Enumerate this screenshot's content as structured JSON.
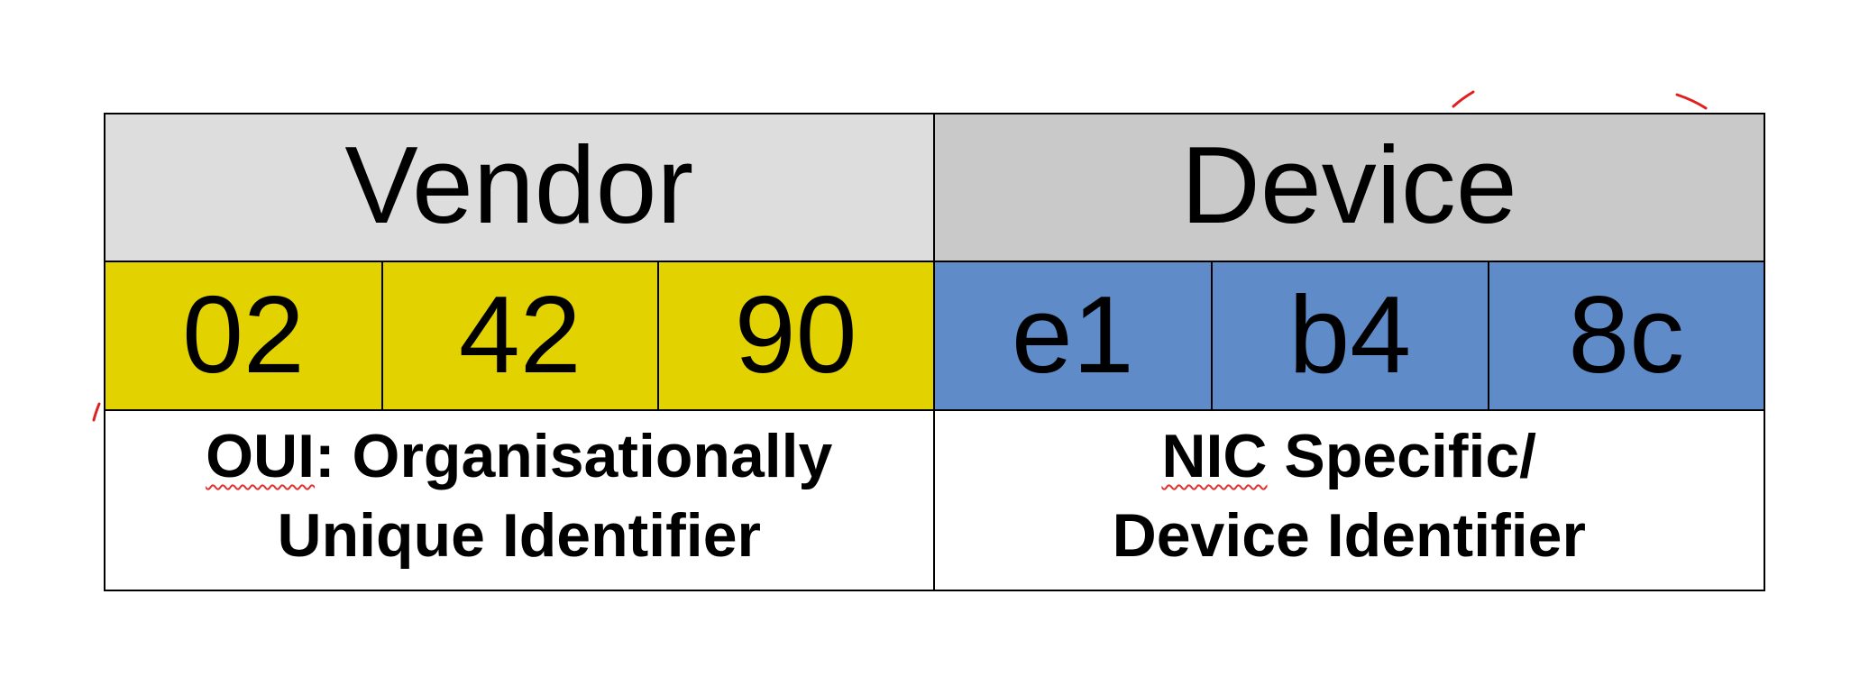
{
  "mac_layout": {
    "vendor": {
      "header": "Vendor",
      "bytes": [
        "02",
        "42",
        "90"
      ],
      "description_line1_term": "OUI",
      "description_line1_rest": ": Organisationally",
      "description_line2": "Unique Identifier",
      "header_color": "#dddddd",
      "byte_color": "#e2d200"
    },
    "device": {
      "header": "Device",
      "bytes": [
        "e1",
        "b4",
        "8c"
      ],
      "description_line1_term": "NIC",
      "description_line1_rest": " Specific/",
      "description_line2": "Device Identifier",
      "header_color": "#c9c9c9",
      "byte_color": "#5f8bc8"
    }
  },
  "colors": {
    "spellcheck_underline": "#e03030",
    "annotation_marks": "#e02020"
  }
}
